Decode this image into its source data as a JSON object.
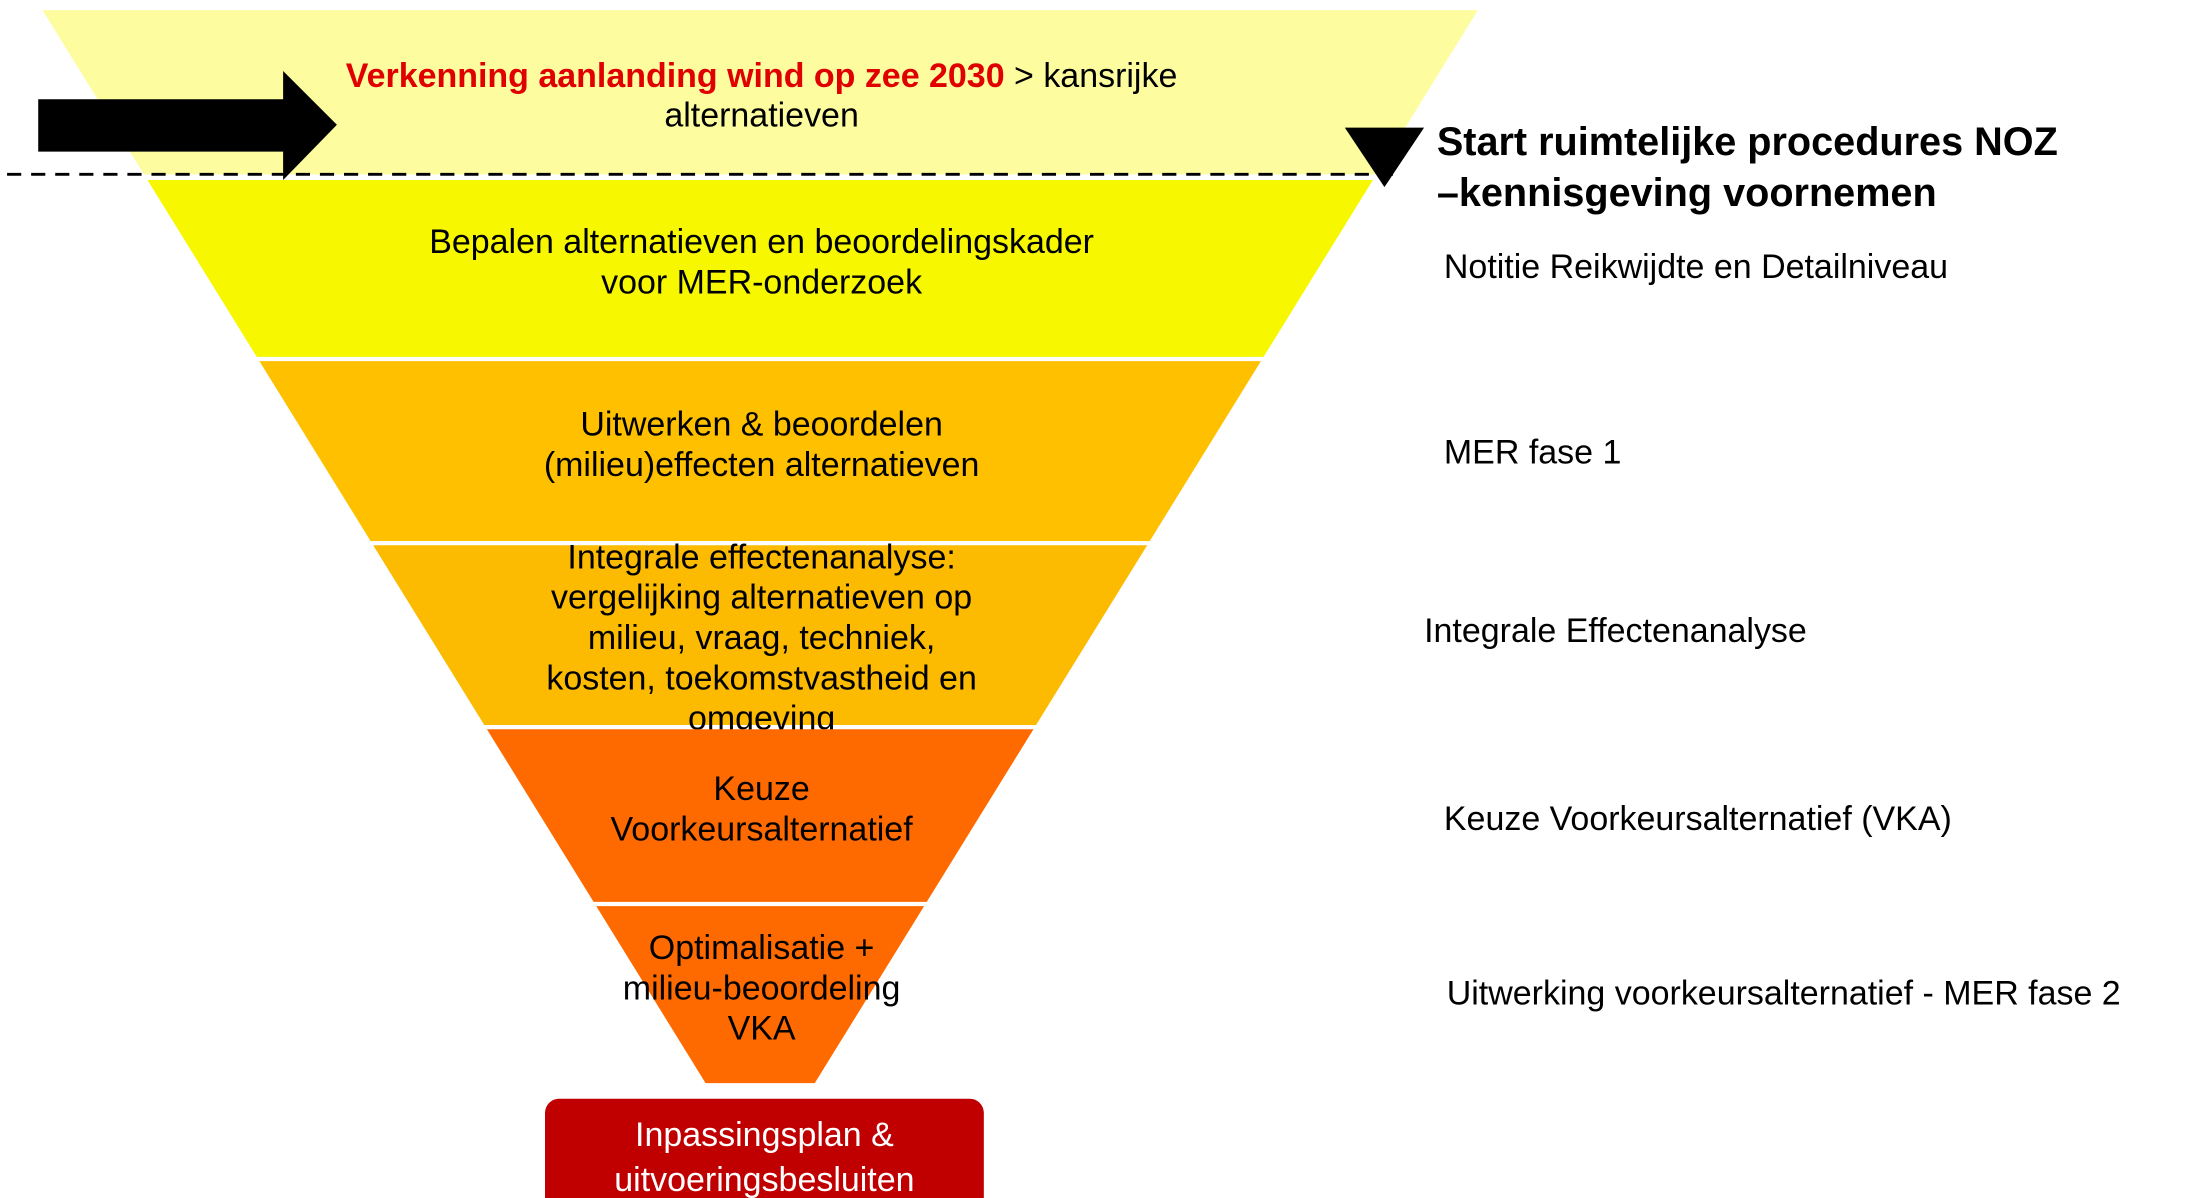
{
  "intro": {
    "highlight": "Verkenning aanlanding wind op zee 2030",
    "rest_line1": "> kansrijke",
    "rest_line2": "alternatieven"
  },
  "header": {
    "line1": "Start ruimtelijke procedures NOZ",
    "line2": "–kennisgeving voornemen"
  },
  "stages": [
    {
      "lines": [
        "Bepalen alternatieven en beoordelingskader",
        "voor MER-onderzoek"
      ],
      "side": "Notitie Reikwijdte en Detailniveau"
    },
    {
      "lines": [
        "Uitwerken & beoordelen",
        "(milieu)effecten alternatieven"
      ],
      "side": "MER fase 1"
    },
    {
      "lines": [
        "Integrale effectenanalyse:",
        "vergelijking alternatieven op",
        "milieu, vraag, techniek,",
        "kosten, toekomstvastheid en",
        "omgeving"
      ],
      "side": "Integrale Effectenanalyse"
    },
    {
      "lines": [
        "Keuze",
        "Voorkeursalternatief"
      ],
      "side": "Keuze Voorkeursalternatief (VKA)"
    },
    {
      "lines": [
        "Optimalisatie +",
        "milieu-beoordeling",
        "VKA"
      ],
      "side": "Uitwerking voorkeursalternatief - MER fase 2"
    }
  ],
  "result": {
    "lines": [
      "Inpassingsplan &",
      "uitvoeringsbesluiten"
    ]
  }
}
